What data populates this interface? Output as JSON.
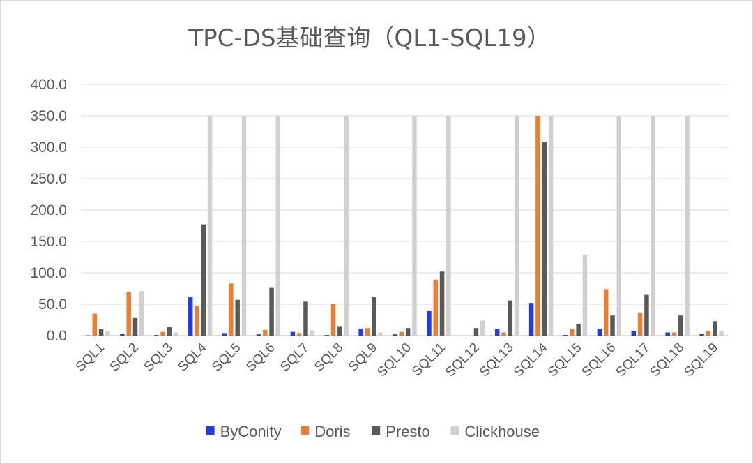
{
  "chart_data": {
    "type": "bar",
    "title": "TPC-DS基础查询（QL1-SQL19）",
    "xlabel": "",
    "ylabel": "",
    "ylim": [
      0,
      400
    ],
    "yticks": [
      "0.0",
      "50.0",
      "100.0",
      "150.0",
      "200.0",
      "250.0",
      "300.0",
      "350.0",
      "400.0"
    ],
    "grid": true,
    "legend_position": "bottom",
    "categories": [
      "SQL1",
      "SQL2",
      "SQL3",
      "SQL4",
      "SQL5",
      "SQL6",
      "SQL7",
      "SQL8",
      "SQL9",
      "SQL10",
      "SQL11",
      "SQL12",
      "SQL13",
      "SQL14",
      "SQL15",
      "SQL16",
      "SQL17",
      "SQL18",
      "SQL19"
    ],
    "series": [
      {
        "name": "ByConity",
        "color": "#1f3bea",
        "values": [
          0.5,
          3,
          1,
          61,
          4,
          2,
          6,
          1,
          11,
          2,
          39,
          0,
          10,
          52,
          1,
          11,
          7,
          5,
          3
        ]
      },
      {
        "name": "Doris",
        "color": "#ed7d31",
        "values": [
          35,
          70,
          6,
          47,
          83,
          9,
          4,
          50,
          12,
          6,
          89,
          0,
          5,
          350,
          10,
          74,
          37,
          5,
          7
        ]
      },
      {
        "name": "Presto",
        "color": "#595959",
        "values": [
          10,
          28,
          14,
          177,
          57,
          76,
          54,
          15,
          61,
          12,
          102,
          12,
          56,
          308,
          19,
          32,
          65,
          32,
          23
        ]
      },
      {
        "name": "Clickhouse",
        "color": "#d0d0d0",
        "values": [
          7,
          71,
          5,
          350,
          350,
          350,
          8,
          350,
          5,
          350,
          350,
          24,
          350,
          350,
          129,
          350,
          350,
          350,
          7
        ]
      }
    ]
  }
}
